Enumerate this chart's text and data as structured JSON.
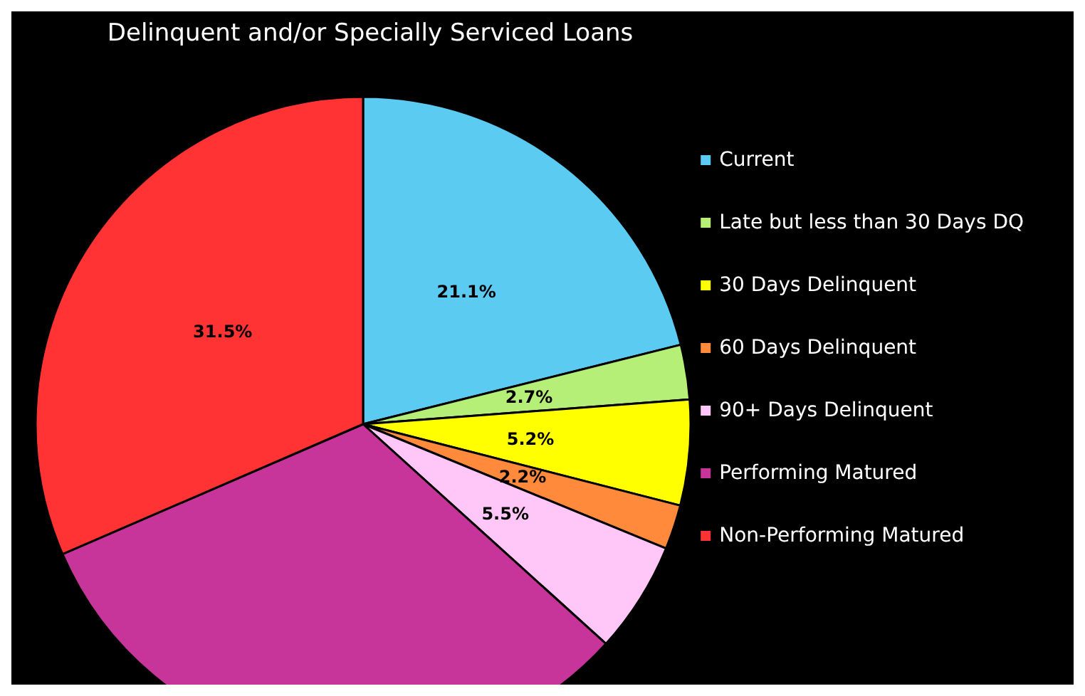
{
  "chart_data": {
    "type": "pie",
    "title": "Delinquent and/or Specially Serviced Loans",
    "categories": [
      "Current",
      "Late but less than 30 Days DQ",
      "30 Days Delinquent",
      "60 Days Delinquent",
      "90+ Days Delinquent",
      "Performing Matured",
      "Non-Performing Matured"
    ],
    "values": [
      21.1,
      2.7,
      5.2,
      2.2,
      5.5,
      31.8,
      31.5
    ],
    "value_labels": [
      "21.1%",
      "2.7%",
      "5.2%",
      "2.2%",
      "5.5%",
      null,
      "31.5%"
    ],
    "colors": [
      "#5bcbf2",
      "#b6ef78",
      "#ffff00",
      "#ff8a3c",
      "#ffc6f7",
      "#c8359a",
      "#ff3333"
    ],
    "legend": "right"
  }
}
